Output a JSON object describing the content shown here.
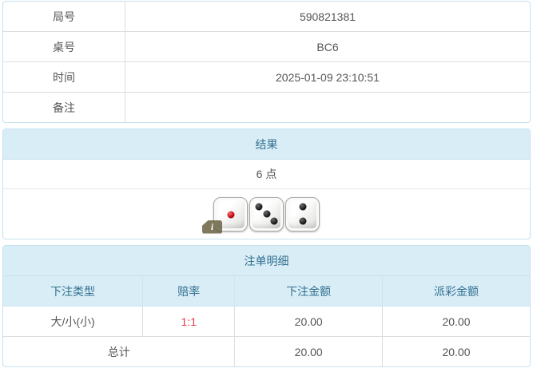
{
  "info_table": {
    "rows": [
      {
        "label": "局号",
        "value": "590821381"
      },
      {
        "label": "桌号",
        "value": "BC6"
      },
      {
        "label": "时间",
        "value": "2025-01-09 23:10:51"
      },
      {
        "label": "备注",
        "value": ""
      }
    ]
  },
  "result_panel": {
    "title": "结果",
    "points": "6 点",
    "dice": [
      {
        "value": 1,
        "color": "red"
      },
      {
        "value": 3,
        "color": "black"
      },
      {
        "value": 2,
        "color": "black"
      }
    ],
    "info_badge_label": "i"
  },
  "bets_panel": {
    "title": "注单明细",
    "columns": [
      "下注类型",
      "赔率",
      "下注金额",
      "派彩金额"
    ],
    "rows": [
      {
        "type": "大/小(小)",
        "odds": "1:1",
        "bet": "20.00",
        "payout": "20.00"
      }
    ],
    "total": {
      "label": "总计",
      "bet": "20.00",
      "payout": "20.00"
    }
  },
  "colors": {
    "header_bg": "#d9edf7",
    "header_text": "#31708f",
    "panel_border": "#c6e1ef",
    "cell_border": "#dddddd",
    "odds_red": "#e8394a",
    "body_text": "#555555"
  }
}
